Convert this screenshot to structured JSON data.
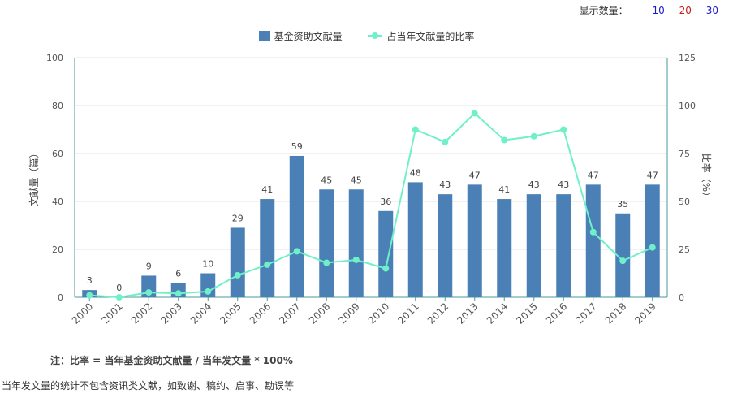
{
  "controls": {
    "label": "显示数量：",
    "options": [
      {
        "label": "10",
        "color": "#1a1acc"
      },
      {
        "label": "20",
        "color": "#cc1a1a"
      },
      {
        "label": "30",
        "color": "#1a1acc"
      }
    ]
  },
  "chart_data": {
    "type": "bar",
    "categories": [
      "2000",
      "2001",
      "2002",
      "2003",
      "2004",
      "2005",
      "2006",
      "2007",
      "2008",
      "2009",
      "2010",
      "2011",
      "2012",
      "2013",
      "2014",
      "2015",
      "2016",
      "2017",
      "2018",
      "2019"
    ],
    "series": [
      {
        "name": "基金资助文献量",
        "type": "bar",
        "axis": "left",
        "color": "#4a80b5",
        "values": [
          3,
          0,
          9,
          6,
          10,
          29,
          41,
          59,
          45,
          45,
          36,
          48,
          43,
          47,
          41,
          43,
          43,
          47,
          35,
          47
        ]
      },
      {
        "name": "占当年文献量的比率",
        "type": "line",
        "axis": "right",
        "color": "#6ff0c8",
        "values": [
          1,
          0,
          2.5,
          2,
          3,
          11.5,
          17,
          24,
          18,
          19.5,
          15,
          87.5,
          81,
          96,
          82,
          84,
          87.5,
          34,
          19,
          26
        ]
      }
    ],
    "ylabel": "文献量（篇）",
    "y2label": "比率（%）",
    "ylim": [
      0,
      100
    ],
    "y2lim": [
      0,
      125
    ],
    "yticks": [
      0,
      20,
      40,
      60,
      80,
      100
    ],
    "y2ticks": [
      0,
      25,
      50,
      75,
      100,
      125
    ],
    "grid": true,
    "legend": "top-center"
  },
  "notes": {
    "formula": "注：比率 = 当年基金资助文献量 / 当年发文量 * 100%",
    "footnote": "当年发文量的统计不包含资讯类文献，如致谢、稿约、启事、勘误等"
  }
}
